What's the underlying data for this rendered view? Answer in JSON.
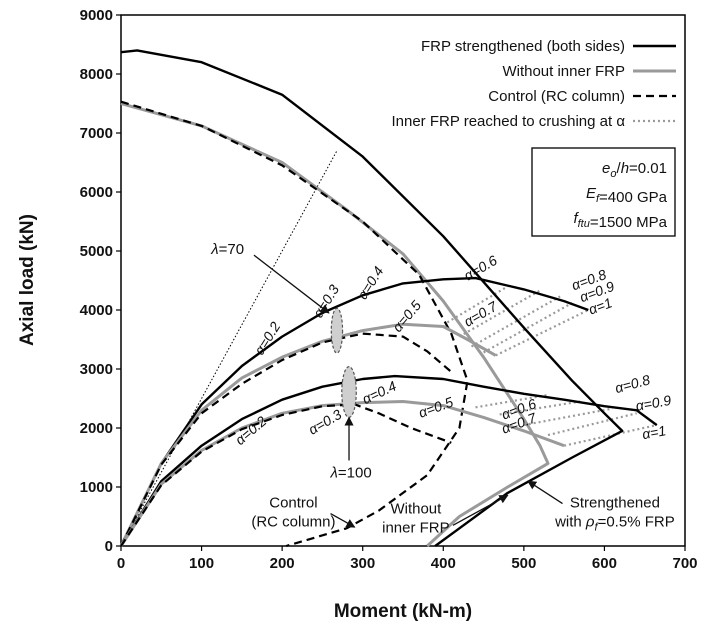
{
  "chart_data": {
    "type": "line",
    "title": "",
    "xlabel": "Moment (kN-m)",
    "ylabel": "Axial load (kN)",
    "xlim": [
      0,
      700
    ],
    "ylim": [
      0,
      9000
    ],
    "xticks": [
      0,
      100,
      200,
      300,
      400,
      500,
      600,
      700
    ],
    "yticks": [
      0,
      1000,
      2000,
      3000,
      4000,
      5000,
      6000,
      7000,
      8000,
      9000
    ],
    "grid": false,
    "legend_position": "top-right",
    "legend": [
      {
        "label": "FRP strengthened (both sides)",
        "style": "solid-black"
      },
      {
        "label": "Without inner FRP",
        "style": "solid-gray"
      },
      {
        "label": "Control (RC column)",
        "style": "dashed-black"
      },
      {
        "label": "Inner FRP reached to crushing at α",
        "style": "dotted-gray"
      }
    ],
    "info_box": [
      "eₒ/h=0.01",
      "E_f=400 GPa",
      "f_ftu=1500 MPa"
    ],
    "info_box_parts": [
      {
        "a": "e",
        "sub": "o",
        "b": "/",
        "c": "h",
        "d": "=0.01"
      },
      {
        "a": "E",
        "sub": "f",
        "b": "",
        "c": "",
        "d": "=400 GPa"
      },
      {
        "a": "f",
        "sub": "ftu",
        "b": "",
        "c": "",
        "d": "=1500 MPa"
      }
    ],
    "series": [
      {
        "name": "FRP strengthened (both sides)",
        "style": "solid-black",
        "points": [
          [
            0,
            8370
          ],
          [
            20,
            8400
          ],
          [
            100,
            8200
          ],
          [
            200,
            7650
          ],
          [
            300,
            6600
          ],
          [
            400,
            5250
          ],
          [
            500,
            3700
          ],
          [
            560,
            2800
          ],
          [
            600,
            2250
          ],
          [
            622,
            1950
          ],
          [
            560,
            1500
          ],
          [
            480,
            900
          ],
          [
            420,
            300
          ],
          [
            390,
            0
          ]
        ]
      },
      {
        "name": "Without inner FRP",
        "style": "solid-gray",
        "points": [
          [
            0,
            7500
          ],
          [
            100,
            7120
          ],
          [
            200,
            6500
          ],
          [
            280,
            5700
          ],
          [
            350,
            4950
          ],
          [
            400,
            4150
          ],
          [
            450,
            3200
          ],
          [
            500,
            2150
          ],
          [
            520,
            1700
          ],
          [
            530,
            1400
          ],
          [
            480,
            1000
          ],
          [
            420,
            500
          ],
          [
            380,
            0
          ]
        ]
      },
      {
        "name": "Control (RC column)",
        "style": "dashed-black",
        "points": [
          [
            0,
            7530
          ],
          [
            100,
            7120
          ],
          [
            200,
            6450
          ],
          [
            300,
            5500
          ],
          [
            370,
            4600
          ],
          [
            410,
            3600
          ],
          [
            430,
            2800
          ],
          [
            420,
            2000
          ],
          [
            380,
            1200
          ],
          [
            320,
            600
          ],
          [
            280,
            300
          ],
          [
            205,
            0
          ]
        ]
      },
      {
        "name": "FRP strengthened, λ=70",
        "style": "solid-black",
        "points": [
          [
            0,
            0
          ],
          [
            50,
            1400
          ],
          [
            100,
            2400
          ],
          [
            150,
            3050
          ],
          [
            200,
            3550
          ],
          [
            250,
            3950
          ],
          [
            300,
            4250
          ],
          [
            350,
            4450
          ],
          [
            400,
            4520
          ],
          [
            440,
            4540
          ],
          [
            500,
            4350
          ],
          [
            550,
            4150
          ],
          [
            580,
            4000
          ]
        ]
      },
      {
        "name": "Without inner FRP, λ=70",
        "style": "solid-gray",
        "points": [
          [
            0,
            0
          ],
          [
            50,
            1400
          ],
          [
            100,
            2300
          ],
          [
            150,
            2850
          ],
          [
            200,
            3200
          ],
          [
            250,
            3470
          ],
          [
            300,
            3650
          ],
          [
            350,
            3760
          ],
          [
            400,
            3720
          ],
          [
            430,
            3500
          ],
          [
            465,
            3230
          ]
        ]
      },
      {
        "name": "Control, λ=70",
        "style": "dashed-black",
        "points": [
          [
            0,
            0
          ],
          [
            50,
            1380
          ],
          [
            100,
            2250
          ],
          [
            150,
            2750
          ],
          [
            200,
            3150
          ],
          [
            250,
            3450
          ],
          [
            300,
            3600
          ],
          [
            350,
            3550
          ],
          [
            380,
            3300
          ],
          [
            410,
            2950
          ]
        ]
      },
      {
        "name": "FRP strengthened, λ=100",
        "style": "solid-black",
        "points": [
          [
            0,
            0
          ],
          [
            50,
            1100
          ],
          [
            100,
            1700
          ],
          [
            150,
            2150
          ],
          [
            200,
            2480
          ],
          [
            250,
            2700
          ],
          [
            300,
            2830
          ],
          [
            340,
            2880
          ],
          [
            400,
            2830
          ],
          [
            450,
            2700
          ],
          [
            500,
            2580
          ],
          [
            550,
            2480
          ],
          [
            600,
            2370
          ],
          [
            640,
            2300
          ],
          [
            665,
            2050
          ]
        ]
      },
      {
        "name": "Without inner FRP, λ=100",
        "style": "solid-gray",
        "points": [
          [
            0,
            0
          ],
          [
            50,
            1050
          ],
          [
            100,
            1620
          ],
          [
            150,
            2000
          ],
          [
            200,
            2250
          ],
          [
            250,
            2380
          ],
          [
            300,
            2430
          ],
          [
            350,
            2450
          ],
          [
            400,
            2380
          ],
          [
            450,
            2180
          ],
          [
            500,
            1950
          ],
          [
            550,
            1700
          ]
        ]
      },
      {
        "name": "Control, λ=100",
        "style": "dashed-black",
        "points": [
          [
            0,
            0
          ],
          [
            50,
            1030
          ],
          [
            100,
            1600
          ],
          [
            150,
            1980
          ],
          [
            200,
            2220
          ],
          [
            250,
            2370
          ],
          [
            290,
            2400
          ],
          [
            320,
            2250
          ],
          [
            360,
            2000
          ],
          [
            410,
            1750
          ]
        ]
      }
    ],
    "crush_lines": [
      {
        "from": [
          405,
          3790
        ],
        "to": [
          480,
          4400
        ]
      },
      {
        "from": [
          420,
          3550
        ],
        "to": [
          520,
          4330
        ]
      },
      {
        "from": [
          435,
          3380
        ],
        "to": [
          545,
          4230
        ]
      },
      {
        "from": [
          450,
          3280
        ],
        "to": [
          560,
          4120
        ]
      },
      {
        "from": [
          465,
          3230
        ],
        "to": [
          580,
          4000
        ]
      },
      {
        "from": [
          440,
          2350
        ],
        "to": [
          530,
          2560
        ]
      },
      {
        "from": [
          470,
          2230
        ],
        "to": [
          570,
          2450
        ]
      },
      {
        "from": [
          500,
          2050
        ],
        "to": [
          610,
          2330
        ]
      },
      {
        "from": [
          530,
          1880
        ],
        "to": [
          640,
          2250
        ]
      },
      {
        "from": [
          550,
          1700
        ],
        "to": [
          665,
          2050
        ]
      }
    ],
    "reference_line": {
      "from": [
        0,
        0
      ],
      "to": [
        268,
        6700
      ]
    },
    "alpha_labels": [
      {
        "text": "α=0.2",
        "at": [
          175,
          3220
        ],
        "rotate": -58
      },
      {
        "text": "α=0.3",
        "at": [
          248,
          3850
        ],
        "rotate": -58
      },
      {
        "text": "α=0.4",
        "at": [
          303,
          4160
        ],
        "rotate": -58
      },
      {
        "text": "α=0.5",
        "at": [
          345,
          3610
        ],
        "rotate": -50
      },
      {
        "text": "α=0.6",
        "at": [
          430,
          4490
        ],
        "rotate": -30
      },
      {
        "text": "α=0.7",
        "at": [
          430,
          3710
        ],
        "rotate": -30
      },
      {
        "text": "α=0.8",
        "at": [
          562,
          4330
        ],
        "rotate": -20
      },
      {
        "text": "α=0.9",
        "at": [
          572,
          4130
        ],
        "rotate": -20
      },
      {
        "text": "α=1",
        "at": [
          583,
          3920
        ],
        "rotate": -20
      },
      {
        "text": "α=0.2",
        "at": [
          148,
          1700
        ],
        "rotate": -40
      },
      {
        "text": "α=0.3",
        "at": [
          237,
          1880
        ],
        "rotate": -30
      },
      {
        "text": "α=0.4",
        "at": [
          303,
          2400
        ],
        "rotate": -25
      },
      {
        "text": "α=0.5",
        "at": [
          372,
          2170
        ],
        "rotate": -20
      },
      {
        "text": "α=0.6",
        "at": [
          475,
          2140
        ],
        "rotate": -20
      },
      {
        "text": "α=0.7",
        "at": [
          475,
          1900
        ],
        "rotate": -20
      },
      {
        "text": "α=0.8",
        "at": [
          615,
          2590
        ],
        "rotate": -15
      },
      {
        "text": "α=0.9",
        "at": [
          640,
          2290
        ],
        "rotate": -10
      },
      {
        "text": "α=1",
        "at": [
          648,
          1810
        ],
        "rotate": -10
      }
    ],
    "annotations": [
      {
        "id": "lambda70",
        "text": "λ=70",
        "label_at": [
          112,
          4950
        ],
        "ellipse": {
          "cx": 268,
          "cy": 3650,
          "rx": 7,
          "ry": 380
        },
        "arrow_from": [
          165,
          4930
        ],
        "arrow_to": [
          258,
          3950
        ]
      },
      {
        "id": "lambda100",
        "text": "λ=100",
        "label_at": [
          260,
          1160
        ],
        "ellipse": {
          "cx": 283,
          "cy": 2610,
          "rx": 9,
          "ry": 430
        },
        "arrow_from": [
          283,
          1450
        ],
        "arrow_to": [
          283,
          2180
        ]
      },
      {
        "id": "control",
        "text_lines": [
          "Control",
          "(RC column)"
        ],
        "label_at": [
          214,
          650
        ],
        "arrow_from": [
          260,
          550
        ],
        "arrow_to": [
          290,
          320
        ]
      },
      {
        "id": "without",
        "text_lines": [
          "Without",
          "inner FRP"
        ],
        "label_at": [
          366,
          550
        ],
        "arrow_from": [
          412,
          350
        ],
        "arrow_to": [
          480,
          860
        ]
      },
      {
        "id": "strengthened",
        "text_lines": [
          "Strengthened",
          "with ρ_f=0.5% FRP"
        ],
        "label_at": [
          613,
          650
        ],
        "arrow_from": [
          548,
          720
        ],
        "arrow_to": [
          505,
          1100
        ]
      }
    ]
  }
}
